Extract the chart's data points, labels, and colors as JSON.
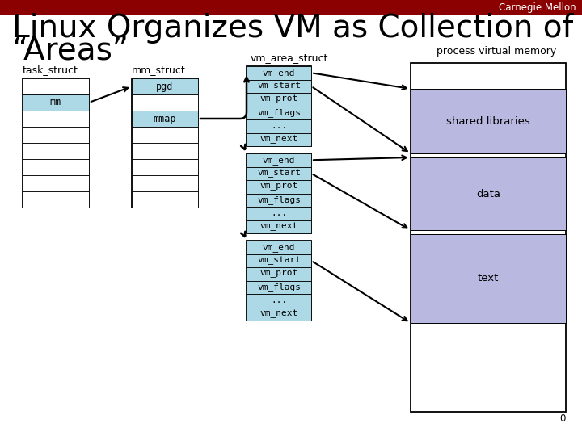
{
  "title_line1": "Linux Organizes VM as Collection of",
  "title_line2": "“Areas”",
  "header_text": "Carnegie Mellon",
  "header_bg": "#8B0000",
  "header_fg": "#ffffff",
  "bg_color": "#ffffff",
  "cell_bg_light_blue": "#add8e6",
  "cell_bg_white": "#ffffff",
  "memory_region_bg": "#b8b8e0",
  "memory_region_labels": [
    "shared libraries",
    "data",
    "text"
  ],
  "title_fontsize": 28,
  "label_fontsize": 9,
  "cell_fontsize": 8.5
}
